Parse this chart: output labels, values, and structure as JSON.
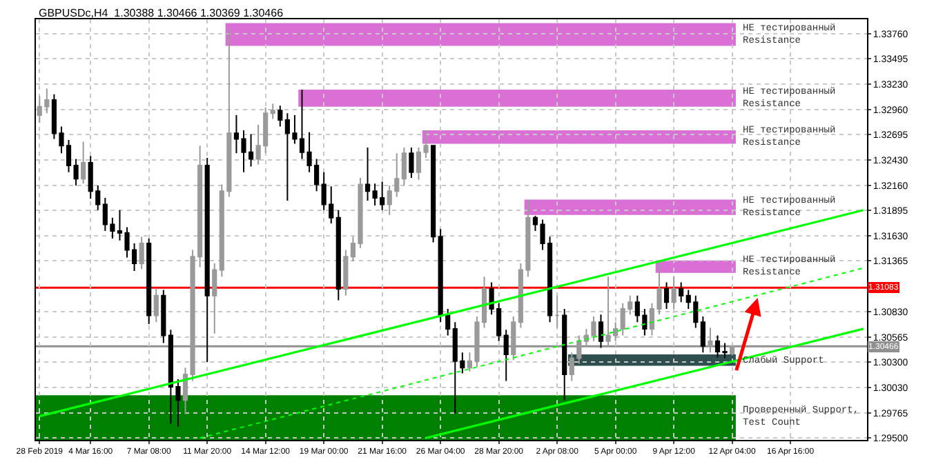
{
  "chart_data": {
    "type": "candlestick",
    "title": "GBPUSDc,H4  1.30388 1.30466 1.30369 1.30466",
    "categories": [
      "28 Feb 2019",
      null,
      null,
      null,
      null,
      null,
      null,
      "4 Mar 16:00",
      null,
      null,
      null,
      null,
      null,
      null,
      null,
      "7 Mar 08:00",
      null,
      null,
      null,
      null,
      null,
      null,
      null,
      "11 Mar 20:00",
      null,
      null,
      null,
      null,
      null,
      null,
      null,
      "14 Mar 12:00",
      null,
      null,
      null,
      null,
      null,
      null,
      null,
      "19 Mar 00:00",
      null,
      null,
      null,
      null,
      null,
      null,
      null,
      "21 Mar 16:00",
      null,
      null,
      null,
      null,
      null,
      null,
      null,
      "26 Mar 04:00",
      null,
      null,
      null,
      null,
      null,
      null,
      null,
      "28 Mar 20:00",
      null,
      null,
      null,
      null,
      null,
      null,
      null,
      "2 Apr 08:00",
      null,
      null,
      null,
      null,
      null,
      null,
      null,
      "5 Apr 00:00",
      null,
      null,
      null,
      null,
      null,
      null,
      null,
      "9 Apr 12:00",
      null,
      null,
      null,
      null,
      null,
      null,
      null,
      "12 Apr 04:00",
      null,
      null,
      null,
      null,
      null,
      null,
      null,
      "16 Apr 16:00",
      null,
      null,
      null,
      null,
      null,
      null,
      null,
      null,
      null,
      null
    ],
    "ohlc": [
      [
        1.329,
        1.331,
        1.3282,
        1.3299
      ],
      [
        1.3299,
        1.3318,
        1.3292,
        1.3306
      ],
      [
        1.3306,
        1.3312,
        1.3265,
        1.3271
      ],
      [
        1.3271,
        1.3278,
        1.325,
        1.3258
      ],
      [
        1.3258,
        1.3264,
        1.323,
        1.3237
      ],
      [
        1.3237,
        1.3244,
        1.3216,
        1.3223
      ],
      [
        1.3223,
        1.3262,
        1.3218,
        1.324
      ],
      [
        1.324,
        1.3247,
        1.3202,
        1.321
      ],
      [
        1.321,
        1.3216,
        1.319,
        1.3196
      ],
      [
        1.3196,
        1.3203,
        1.3168,
        1.3175
      ],
      [
        1.3175,
        1.3182,
        1.316,
        1.3168
      ],
      [
        1.3168,
        1.319,
        1.3158,
        1.3166
      ],
      [
        1.3166,
        1.3172,
        1.314,
        1.3148
      ],
      [
        1.3148,
        1.3155,
        1.3126,
        1.3134
      ],
      [
        1.3134,
        1.3162,
        1.3128,
        1.3155
      ],
      [
        1.3155,
        1.316,
        1.307,
        1.3079
      ],
      [
        1.3079,
        1.3108,
        1.3072,
        1.31
      ],
      [
        1.31,
        1.3106,
        1.305,
        1.3058
      ],
      [
        1.3058,
        1.3064,
        1.2965,
        1.3004
      ],
      [
        1.3004,
        1.3012,
        1.2962,
        1.299
      ],
      [
        1.299,
        1.3024,
        1.2975,
        1.3017
      ],
      [
        1.3017,
        1.3148,
        1.301,
        1.3141
      ],
      [
        1.3141,
        1.3258,
        1.313,
        1.3237
      ],
      [
        1.3237,
        1.3245,
        1.303,
        1.31
      ],
      [
        1.31,
        1.3134,
        1.306,
        1.3127
      ],
      [
        1.3127,
        1.3217,
        1.312,
        1.321
      ],
      [
        1.321,
        1.3381,
        1.3204,
        1.3271
      ],
      [
        1.3271,
        1.329,
        1.325,
        1.3265
      ],
      [
        1.3265,
        1.3274,
        1.323,
        1.3251
      ],
      [
        1.3251,
        1.327,
        1.3236,
        1.3244
      ],
      [
        1.3244,
        1.328,
        1.3238,
        1.3258
      ],
      [
        1.3258,
        1.3298,
        1.325,
        1.3292
      ],
      [
        1.3292,
        1.3302,
        1.3286,
        1.3295
      ],
      [
        1.3295,
        1.33,
        1.3278,
        1.3285
      ],
      [
        1.3285,
        1.3292,
        1.32,
        1.3271
      ],
      [
        1.3271,
        1.329,
        1.326,
        1.3265
      ],
      [
        1.3265,
        1.3317,
        1.3244,
        1.3251
      ],
      [
        1.3251,
        1.3272,
        1.323,
        1.3237
      ],
      [
        1.3237,
        1.3244,
        1.321,
        1.3217
      ],
      [
        1.3217,
        1.323,
        1.319,
        1.3196
      ],
      [
        1.3196,
        1.3215,
        1.3176,
        1.3182
      ],
      [
        1.3182,
        1.319,
        1.3095,
        1.3107
      ],
      [
        1.3107,
        1.3148,
        1.31,
        1.3141
      ],
      [
        1.3141,
        1.3162,
        1.3136,
        1.3155
      ],
      [
        1.3155,
        1.3224,
        1.315,
        1.3217
      ],
      [
        1.3217,
        1.3256,
        1.32,
        1.321
      ],
      [
        1.321,
        1.3218,
        1.3195,
        1.3203
      ],
      [
        1.3203,
        1.322,
        1.319,
        1.3196
      ],
      [
        1.3196,
        1.3216,
        1.3185,
        1.321
      ],
      [
        1.321,
        1.325,
        1.3204,
        1.3223
      ],
      [
        1.3223,
        1.3256,
        1.3216,
        1.325
      ],
      [
        1.325,
        1.3256,
        1.3224,
        1.323
      ],
      [
        1.323,
        1.3256,
        1.3222,
        1.3251
      ],
      [
        1.3251,
        1.3274,
        1.3245,
        1.3258
      ],
      [
        1.3258,
        1.3258,
        1.3156,
        1.3162
      ],
      [
        1.3162,
        1.317,
        1.3072,
        1.3079
      ],
      [
        1.3079,
        1.3086,
        1.3058,
        1.3065
      ],
      [
        1.3065,
        1.3072,
        1.2976,
        1.3031
      ],
      [
        1.3031,
        1.304,
        1.3018,
        1.3024
      ],
      [
        1.3024,
        1.304,
        1.302,
        1.3031
      ],
      [
        1.3031,
        1.3078,
        1.3025,
        1.3072
      ],
      [
        1.3072,
        1.312,
        1.3066,
        1.3107
      ],
      [
        1.3107,
        1.3114,
        1.308,
        1.3086
      ],
      [
        1.3086,
        1.3092,
        1.3052,
        1.3058
      ],
      [
        1.3058,
        1.3064,
        1.301,
        1.3038
      ],
      [
        1.3038,
        1.3078,
        1.3032,
        1.3072
      ],
      [
        1.3072,
        1.3134,
        1.3066,
        1.3127
      ],
      [
        1.3127,
        1.3201,
        1.312,
        1.3182
      ],
      [
        1.3182,
        1.3184,
        1.3168,
        1.3175
      ],
      [
        1.3175,
        1.318,
        1.3148,
        1.3155
      ],
      [
        1.3155,
        1.3162,
        1.3072,
        1.3079
      ],
      [
        1.3079,
        1.31,
        1.3066,
        1.3079
      ],
      [
        1.3079,
        1.3086,
        1.299,
        1.3017
      ],
      [
        1.3017,
        1.304,
        1.301,
        1.3034
      ],
      [
        1.3034,
        1.3058,
        1.3028,
        1.3052
      ],
      [
        1.3052,
        1.3065,
        1.3046,
        1.3058
      ],
      [
        1.3058,
        1.3078,
        1.3052,
        1.3072
      ],
      [
        1.3072,
        1.308,
        1.3045,
        1.3052
      ],
      [
        1.3052,
        1.312,
        1.3046,
        1.3058
      ],
      [
        1.3058,
        1.3072,
        1.3052,
        1.3065
      ],
      [
        1.3065,
        1.3092,
        1.3058,
        1.3086
      ],
      [
        1.3086,
        1.31,
        1.308,
        1.3093
      ],
      [
        1.3093,
        1.31,
        1.3072,
        1.3079
      ],
      [
        1.3079,
        1.3086,
        1.3058,
        1.3065
      ],
      [
        1.3065,
        1.3092,
        1.3058,
        1.3086
      ],
      [
        1.3086,
        1.3137,
        1.308,
        1.3107
      ],
      [
        1.3107,
        1.3114,
        1.3086,
        1.3093
      ],
      [
        1.3093,
        1.312,
        1.3086,
        1.3107
      ],
      [
        1.3107,
        1.3114,
        1.3093,
        1.31
      ],
      [
        1.31,
        1.3106,
        1.3086,
        1.3093
      ],
      [
        1.3093,
        1.31,
        1.3066,
        1.3072
      ],
      [
        1.3072,
        1.3078,
        1.304,
        1.3047
      ],
      [
        1.3047,
        1.3066,
        1.304,
        1.3052
      ],
      [
        1.3052,
        1.3058,
        1.3035,
        1.3041
      ],
      [
        1.3041,
        1.305,
        1.3034,
        1.304
      ],
      [
        1.30388,
        1.30466,
        1.30369,
        1.30466
      ],
      null,
      null,
      null,
      null,
      null,
      null,
      null,
      null,
      null,
      null,
      null,
      null,
      null,
      null,
      null,
      null,
      null,
      null
    ],
    "colors": [
      "#9a9a9a",
      "#9a9a9a",
      "#000000",
      "#000000",
      "#000000",
      "#000000",
      "#9a9a9a",
      "#000000",
      "#000000",
      "#000000",
      "#000000",
      "#000000",
      "#000000",
      "#000000",
      "#9a9a9a",
      "#000000",
      "#9a9a9a",
      "#000000",
      "#000000",
      "#000000",
      "#9a9a9a",
      "#9a9a9a",
      "#9a9a9a",
      "#000000",
      "#9a9a9a",
      "#9a9a9a",
      "#9a9a9a",
      "#000000",
      "#000000",
      "#000000",
      "#9a9a9a",
      "#9a9a9a",
      "#9a9a9a",
      "#000000",
      "#000000",
      "#000000",
      "#000000",
      "#000000",
      "#000000",
      "#000000",
      "#000000",
      "#000000",
      "#9a9a9a",
      "#9a9a9a",
      "#9a9a9a",
      "#000000",
      "#000000",
      "#000000",
      "#9a9a9a",
      "#9a9a9a",
      "#9a9a9a",
      "#000000",
      "#9a9a9a",
      "#9a9a9a",
      "#000000",
      "#000000",
      "#000000",
      "#000000",
      "#000000",
      "#9a9a9a",
      "#9a9a9a",
      "#9a9a9a",
      "#000000",
      "#000000",
      "#000000",
      "#9a9a9a",
      "#9a9a9a",
      "#9a9a9a",
      "#000000",
      "#000000",
      "#000000",
      "#9a9a9a",
      "#000000",
      "#9a9a9a",
      "#9a9a9a",
      "#9a9a9a",
      "#9a9a9a",
      "#000000",
      "#9a9a9a",
      "#9a9a9a",
      "#9a9a9a",
      "#9a9a9a",
      "#000000",
      "#000000",
      "#9a9a9a",
      "#9a9a9a",
      "#000000",
      "#9a9a9a",
      "#000000",
      "#000000",
      "#000000",
      "#000000",
      "#9a9a9a",
      "#000000",
      "#000000",
      "#9a9a9a",
      null,
      null,
      null,
      null,
      null,
      null,
      null,
      null,
      null,
      null,
      null,
      null,
      null,
      null,
      null,
      null,
      null,
      null
    ],
    "series": [
      {
        "type": "line",
        "color": "#00ff00",
        "line_style": "solid",
        "values": [
          1.2973,
          null,
          null,
          null,
          null,
          null,
          null,
          null,
          null,
          null,
          null,
          null,
          null,
          null,
          null,
          null,
          null,
          null,
          null,
          null,
          null,
          null,
          null,
          null,
          null,
          null,
          null,
          null,
          null,
          null,
          null,
          null,
          null,
          null,
          null,
          null,
          null,
          null,
          null,
          null,
          null,
          null,
          null,
          null,
          null,
          null,
          null,
          null,
          null,
          null,
          null,
          null,
          null,
          null,
          null,
          null,
          null,
          null,
          null,
          null,
          null,
          null,
          null,
          null,
          null,
          null,
          null,
          null,
          null,
          null,
          null,
          null,
          null,
          null,
          null,
          null,
          null,
          null,
          null,
          null,
          null,
          null,
          null,
          null,
          null,
          null,
          null,
          null,
          null,
          null,
          null,
          null,
          null,
          null,
          null,
          null,
          null,
          null,
          null,
          null,
          null,
          null,
          null,
          null,
          null,
          null,
          null,
          null,
          null,
          null,
          null,
          null,
          null,
          1.319
        ]
      },
      {
        "type": "line",
        "color": "#00ff00",
        "line_style": "solid",
        "values": [
          null,
          null,
          null,
          null,
          null,
          null,
          null,
          null,
          null,
          null,
          null,
          null,
          null,
          null,
          null,
          null,
          null,
          null,
          null,
          null,
          null,
          null,
          null,
          null,
          null,
          null,
          null,
          null,
          null,
          null,
          null,
          null,
          null,
          null,
          null,
          null,
          null,
          null,
          null,
          null,
          null,
          null,
          null,
          null,
          null,
          null,
          null,
          null,
          null,
          null,
          null,
          null,
          null,
          1.295,
          null,
          null,
          null,
          null,
          null,
          null,
          null,
          null,
          null,
          null,
          null,
          null,
          null,
          null,
          null,
          null,
          null,
          null,
          null,
          null,
          null,
          null,
          null,
          null,
          null,
          null,
          null,
          null,
          null,
          null,
          null,
          null,
          null,
          null,
          null,
          null,
          null,
          null,
          null,
          null,
          null,
          null,
          null,
          null,
          null,
          null,
          null,
          null,
          null,
          null,
          null,
          null,
          null,
          null,
          null,
          null,
          null,
          null,
          null,
          1.3065
        ]
      },
      {
        "type": "line",
        "color": "#00ff00",
        "line_style": "dotted",
        "values": [
          null,
          null,
          null,
          null,
          null,
          null,
          null,
          null,
          null,
          null,
          null,
          null,
          null,
          null,
          null,
          null,
          null,
          null,
          null,
          null,
          null,
          null,
          1.295,
          null,
          null,
          null,
          null,
          null,
          null,
          null,
          null,
          null,
          null,
          null,
          null,
          null,
          null,
          null,
          null,
          null,
          null,
          null,
          null,
          null,
          null,
          null,
          null,
          null,
          null,
          null,
          null,
          null,
          null,
          null,
          null,
          null,
          null,
          null,
          null,
          null,
          null,
          null,
          null,
          null,
          null,
          null,
          null,
          null,
          null,
          null,
          null,
          null,
          null,
          null,
          null,
          null,
          null,
          null,
          null,
          null,
          null,
          null,
          null,
          null,
          null,
          null,
          null,
          null,
          null,
          null,
          null,
          null,
          null,
          null,
          null,
          null,
          null,
          null,
          null,
          null,
          null,
          null,
          null,
          null,
          null,
          null,
          null,
          null,
          null,
          null,
          null,
          null,
          null,
          1.3129
        ]
      }
    ],
    "bands": [
      {
        "axis": "y",
        "from": 1.3363,
        "to": 1.3387,
        "label": "НЕ тестированный Resistance",
        "color": "#da70d6"
      },
      {
        "axis": "y",
        "from": 1.3299,
        "to": 1.3317,
        "label": "НЕ тестированный Resistance",
        "color": "#da70d6"
      },
      {
        "axis": "y",
        "from": 1.326,
        "to": 1.3274,
        "label": "НЕ тестированный Resistance",
        "color": "#da70d6"
      },
      {
        "axis": "y",
        "from": 1.3185,
        "to": 1.3201,
        "label": "НЕ тестированный Resistance",
        "color": "#da70d6"
      },
      {
        "axis": "y",
        "from": 1.3124,
        "to": 1.3137,
        "label": "НЕ тестированный Resistance",
        "color": "#da70d6"
      },
      {
        "axis": "y",
        "from": 1.3026,
        "to": 1.3038,
        "label": "Слабый Support",
        "color": "#2f4f4f"
      },
      {
        "axis": "y",
        "from": 1.2948,
        "to": 1.2995,
        "label": "Проверенный Support, Test Count",
        "color": "#008000"
      }
    ],
    "ref_lines": [
      {
        "axis": "y",
        "value": 1.31083,
        "label": "1.31083",
        "color": "#ff0000"
      },
      {
        "axis": "y",
        "value": 1.30466,
        "label": "1.30466",
        "color": "#909090"
      }
    ],
    "ylim": [
      1.2948,
      1.3391
    ],
    "yticks": [
      {
        "value": 1.3376,
        "label": "1.33760"
      },
      {
        "value": 1.33495,
        "label": "1.33495"
      },
      {
        "value": 1.3323,
        "label": "1.33230"
      },
      {
        "value": 1.3296,
        "label": "1.32960"
      },
      {
        "value": 1.32695,
        "label": "1.32695"
      },
      {
        "value": 1.3243,
        "label": "1.32430"
      },
      {
        "value": 1.3216,
        "label": "1.32160"
      },
      {
        "value": 1.31895,
        "label": "1.31895"
      },
      {
        "value": 1.3163,
        "label": "1.31630"
      },
      {
        "value": 1.31365,
        "label": "1.31365"
      },
      {
        "value": 1.3083,
        "label": "1.30830"
      },
      {
        "value": 1.30565,
        "label": "1.30565"
      },
      {
        "value": 1.303,
        "label": "1.30300"
      },
      {
        "value": 1.3003,
        "label": "1.30030"
      },
      {
        "value": 1.29765,
        "label": "1.29765"
      },
      {
        "value": 1.295,
        "label": "1.29500"
      }
    ],
    "grid": true
  }
}
